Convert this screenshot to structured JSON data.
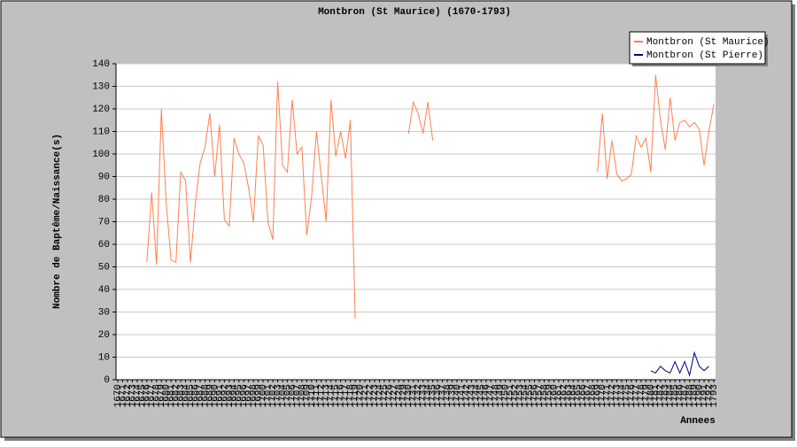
{
  "chart_data": {
    "type": "line",
    "title": "Montbron (St Maurice) (1670-1793)",
    "xlabel": "Annees",
    "ylabel": "Nombre de Baptême/Naissance(s)",
    "x": [
      1670,
      1671,
      1672,
      1673,
      1674,
      1675,
      1676,
      1677,
      1678,
      1679,
      1680,
      1681,
      1682,
      1683,
      1684,
      1685,
      1686,
      1687,
      1688,
      1689,
      1690,
      1691,
      1692,
      1693,
      1694,
      1695,
      1696,
      1697,
      1698,
      1699,
      1700,
      1701,
      1702,
      1703,
      1704,
      1705,
      1706,
      1707,
      1708,
      1709,
      1710,
      1711,
      1712,
      1713,
      1714,
      1715,
      1716,
      1717,
      1718,
      1719,
      1720,
      1721,
      1722,
      1723,
      1724,
      1725,
      1726,
      1727,
      1728,
      1729,
      1730,
      1731,
      1732,
      1733,
      1734,
      1735,
      1736,
      1737,
      1738,
      1739,
      1740,
      1741,
      1742,
      1743,
      1744,
      1745,
      1746,
      1747,
      1748,
      1749,
      1750,
      1751,
      1752,
      1753,
      1754,
      1755,
      1756,
      1757,
      1758,
      1759,
      1760,
      1761,
      1762,
      1763,
      1764,
      1765,
      1766,
      1767,
      1768,
      1769,
      1770,
      1771,
      1772,
      1773,
      1774,
      1775,
      1776,
      1777,
      1778,
      1779,
      1780,
      1781,
      1782,
      1783,
      1784,
      1785,
      1786,
      1787,
      1788,
      1789,
      1790,
      1791,
      1792,
      1793
    ],
    "series": [
      {
        "name": "Montbron (St Maurice)",
        "color": "#ff7f50",
        "values": [
          null,
          null,
          null,
          null,
          null,
          null,
          52,
          83,
          51,
          120,
          78,
          53,
          52,
          92,
          88,
          52,
          78,
          96,
          103,
          118,
          90,
          113,
          71,
          68,
          107,
          100,
          96,
          85,
          70,
          108,
          104,
          70,
          62,
          132,
          95,
          92,
          124,
          100,
          103,
          64,
          81,
          110,
          90,
          70,
          124,
          99,
          110,
          98,
          115,
          27,
          null,
          null,
          null,
          null,
          null,
          null,
          null,
          null,
          null,
          null,
          109,
          123,
          118,
          109,
          123,
          106,
          null,
          null,
          null,
          null,
          null,
          null,
          null,
          null,
          null,
          null,
          null,
          null,
          null,
          null,
          null,
          null,
          null,
          null,
          null,
          null,
          null,
          null,
          null,
          null,
          null,
          null,
          null,
          null,
          null,
          null,
          null,
          null,
          null,
          92,
          118,
          89,
          106,
          91,
          88,
          89,
          91,
          108,
          103,
          107,
          92,
          135,
          115,
          102,
          125,
          106,
          114,
          115,
          112,
          114,
          111,
          95,
          110,
          122
        ]
      },
      {
        "name": "Montbron (St Pierre)",
        "color": "#000080",
        "values": [
          null,
          null,
          null,
          null,
          null,
          null,
          null,
          null,
          null,
          null,
          null,
          null,
          null,
          null,
          null,
          null,
          null,
          null,
          null,
          null,
          null,
          null,
          null,
          null,
          null,
          null,
          null,
          null,
          null,
          null,
          null,
          null,
          null,
          null,
          null,
          null,
          null,
          null,
          null,
          null,
          null,
          null,
          null,
          null,
          null,
          null,
          null,
          null,
          null,
          null,
          null,
          null,
          null,
          null,
          null,
          null,
          null,
          null,
          null,
          null,
          null,
          null,
          null,
          null,
          null,
          null,
          null,
          null,
          null,
          null,
          null,
          null,
          null,
          null,
          null,
          null,
          null,
          null,
          null,
          null,
          null,
          null,
          null,
          null,
          null,
          null,
          null,
          null,
          null,
          null,
          null,
          null,
          null,
          null,
          null,
          null,
          null,
          null,
          null,
          null,
          null,
          null,
          null,
          null,
          null,
          null,
          null,
          null,
          null,
          null,
          4,
          3,
          6,
          4,
          3,
          8,
          3,
          8,
          2,
          12,
          6,
          4,
          6,
          null
        ]
      }
    ],
    "ylim": [
      0,
      140
    ],
    "yticks": [
      0,
      10,
      20,
      30,
      40,
      50,
      60,
      70,
      80,
      90,
      100,
      110,
      120,
      130,
      140
    ],
    "grid": true,
    "legend": "upper right"
  }
}
